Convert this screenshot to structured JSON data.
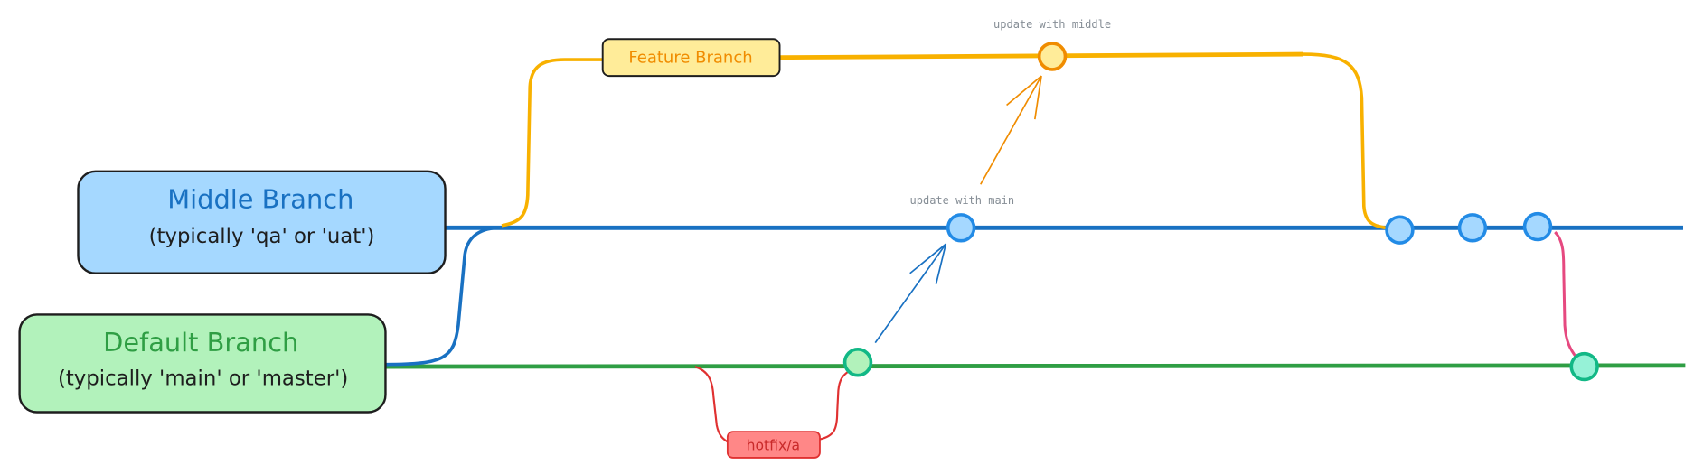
{
  "branches": {
    "middle": {
      "title": "Middle Branch",
      "subtitle": "(typically 'qa' or 'uat')"
    },
    "default": {
      "title": "Default Branch",
      "subtitle": "(typically 'main' or 'master')"
    },
    "feature": {
      "label": "Feature Branch"
    },
    "hotfix": {
      "label": "hotfix/a"
    }
  },
  "annotations": {
    "update_middle": "update with middle",
    "update_main": "update with main"
  },
  "colors": {
    "middle": "#1971c2",
    "middle_fill": "#a5d8ff",
    "default": "#2f9e44",
    "default_fill": "#b2f2bb",
    "feature": "#f8b100",
    "feature_text": "#f08c00",
    "feature_fill": "#ffec99",
    "hotfix": "#e03131",
    "hotfix_fill": "#ff8787",
    "merge_back": "#e64980",
    "annotation": "#868e96"
  }
}
